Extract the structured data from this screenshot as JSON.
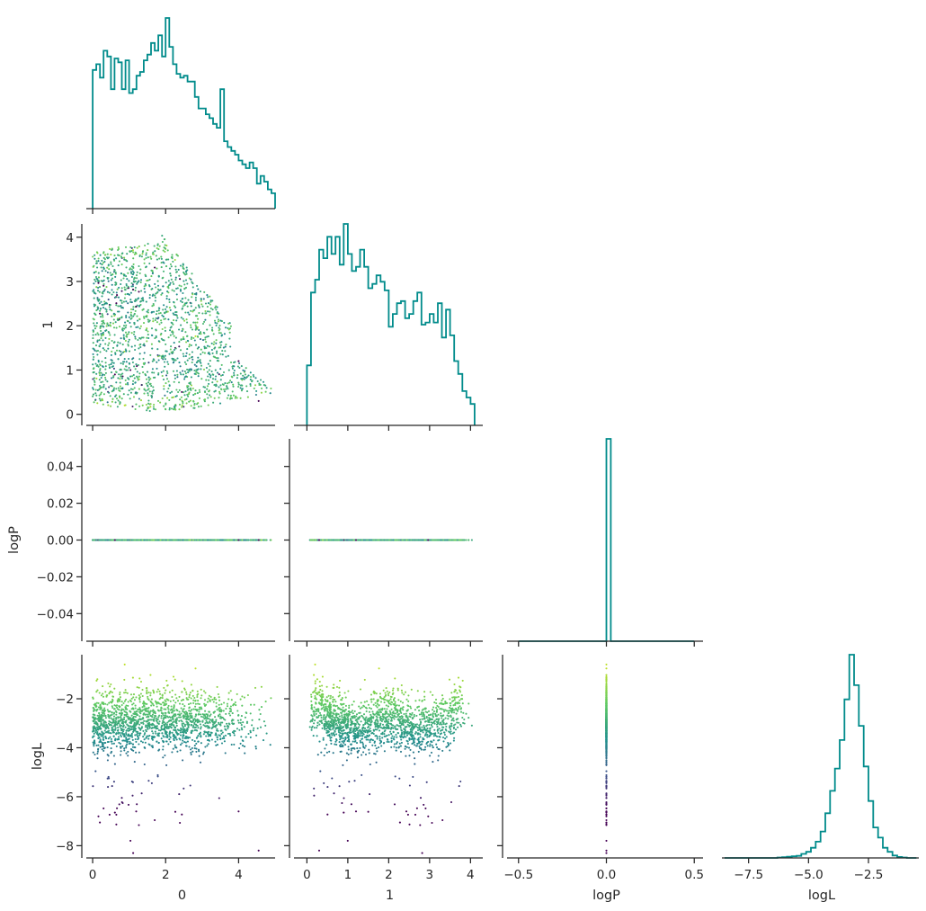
{
  "chart_data": {
    "type": "corner",
    "variables": [
      "0",
      "1",
      "logP",
      "logL"
    ],
    "axis_labels": {
      "x": [
        "0",
        "1",
        "logP",
        "logL"
      ],
      "y": [
        "",
        "1",
        "logP",
        "logL"
      ]
    },
    "colormap": "viridis",
    "color_by": "logL",
    "colors": {
      "hist": "#008b8b",
      "axis": "#262626",
      "cmap_low": "#3b528b",
      "cmap_mid": "#21918c",
      "cmap_high": "#bddf26"
    },
    "ranges": {
      "0": [
        -0.1,
        5.0
      ],
      "1": [
        -0.25,
        4.3
      ],
      "logP": [
        -0.055,
        0.055
      ],
      "logL": [
        -8.5,
        -0.2
      ],
      "logP_hist_x": [
        -0.55,
        0.55
      ],
      "logL_hist_x": [
        -8.5,
        -0.4
      ]
    },
    "ticks": {
      "0": [
        {
          "v": 0,
          "t": "0"
        },
        {
          "v": 2,
          "t": "2"
        },
        {
          "v": 4,
          "t": "4"
        }
      ],
      "1": [
        {
          "v": 0,
          "t": "0"
        },
        {
          "v": 1,
          "t": "1"
        },
        {
          "v": 2,
          "t": "2"
        },
        {
          "v": 3,
          "t": "3"
        },
        {
          "v": 4,
          "t": "4"
        }
      ],
      "logP_y": [
        {
          "v": 0.04,
          "t": "0.04"
        },
        {
          "v": 0.02,
          "t": "0.02"
        },
        {
          "v": 0,
          "t": "0.00"
        },
        {
          "v": -0.02,
          "t": "−0.02"
        },
        {
          "v": -0.04,
          "t": "−0.04"
        }
      ],
      "logP_x": [
        {
          "v": -0.5,
          "t": "−0.5"
        },
        {
          "v": 0,
          "t": "0.0"
        },
        {
          "v": 0.5,
          "t": "0.5"
        }
      ],
      "logL_y": [
        {
          "v": -2,
          "t": "−2"
        },
        {
          "v": -4,
          "t": "−4"
        },
        {
          "v": -6,
          "t": "−6"
        },
        {
          "v": -8,
          "t": "−8"
        }
      ],
      "logL_x": [
        {
          "v": -7.5,
          "t": "−7.5"
        },
        {
          "v": -5,
          "t": "−5.0"
        },
        {
          "v": -2.5,
          "t": "−2.5"
        }
      ]
    },
    "histograms": {
      "0": {
        "bin_start": 0.0,
        "bin_width": 0.1,
        "counts": [
          0.72,
          0.75,
          0.68,
          0.82,
          0.79,
          0.62,
          0.78,
          0.76,
          0.62,
          0.77,
          0.6,
          0.62,
          0.69,
          0.71,
          0.77,
          0.8,
          0.86,
          0.82,
          0.9,
          0.79,
          0.99,
          0.84,
          0.75,
          0.7,
          0.68,
          0.69,
          0.66,
          0.66,
          0.58,
          0.52,
          0.52,
          0.49,
          0.47,
          0.44,
          0.42,
          0.62,
          0.35,
          0.32,
          0.3,
          0.28,
          0.25,
          0.23,
          0.21,
          0.24,
          0.21,
          0.13,
          0.17,
          0.14,
          0.1,
          0.08
        ]
      },
      "1": {
        "bin_start": 0.0,
        "bin_width": 0.1,
        "counts": [
          0.28,
          0.62,
          0.68,
          0.82,
          0.78,
          0.88,
          0.8,
          0.88,
          0.75,
          0.94,
          0.8,
          0.72,
          0.74,
          0.82,
          0.74,
          0.64,
          0.66,
          0.7,
          0.67,
          0.63,
          0.46,
          0.52,
          0.57,
          0.58,
          0.5,
          0.52,
          0.58,
          0.62,
          0.47,
          0.48,
          0.52,
          0.48,
          0.57,
          0.41,
          0.54,
          0.42,
          0.3,
          0.24,
          0.16,
          0.13,
          0.1
        ]
      },
      "logP": {
        "bin_start": -0.5,
        "bin_width": 0.025,
        "counts": [
          0,
          0,
          0,
          0,
          0,
          0,
          0,
          0,
          0,
          0,
          0,
          0,
          0,
          0,
          0,
          0,
          0,
          0,
          0,
          0,
          1.0,
          0,
          0,
          0,
          0,
          0,
          0,
          0,
          0,
          0,
          0,
          0,
          0,
          0,
          0,
          0,
          0,
          0,
          0,
          0
        ]
      },
      "logL": {
        "bin_start": -8.5,
        "bin_width": 0.2,
        "counts": [
          0,
          0,
          0,
          0,
          0,
          0,
          0,
          0,
          0,
          0,
          0,
          0.002,
          0.004,
          0.006,
          0.008,
          0.01,
          0.02,
          0.03,
          0.05,
          0.08,
          0.13,
          0.22,
          0.33,
          0.44,
          0.58,
          0.78,
          1.0,
          0.85,
          0.65,
          0.45,
          0.28,
          0.15,
          0.1,
          0.05,
          0.03,
          0.012,
          0.005,
          0.002,
          0,
          0
        ]
      }
    },
    "scatter_pairs": [
      {
        "x": "0",
        "y": "1"
      },
      {
        "x": "0",
        "y": "logP"
      },
      {
        "x": "1",
        "y": "logP"
      },
      {
        "x": "0",
        "y": "logL"
      },
      {
        "x": "1",
        "y": "logL"
      },
      {
        "x": "logP",
        "y": "logL"
      }
    ]
  }
}
